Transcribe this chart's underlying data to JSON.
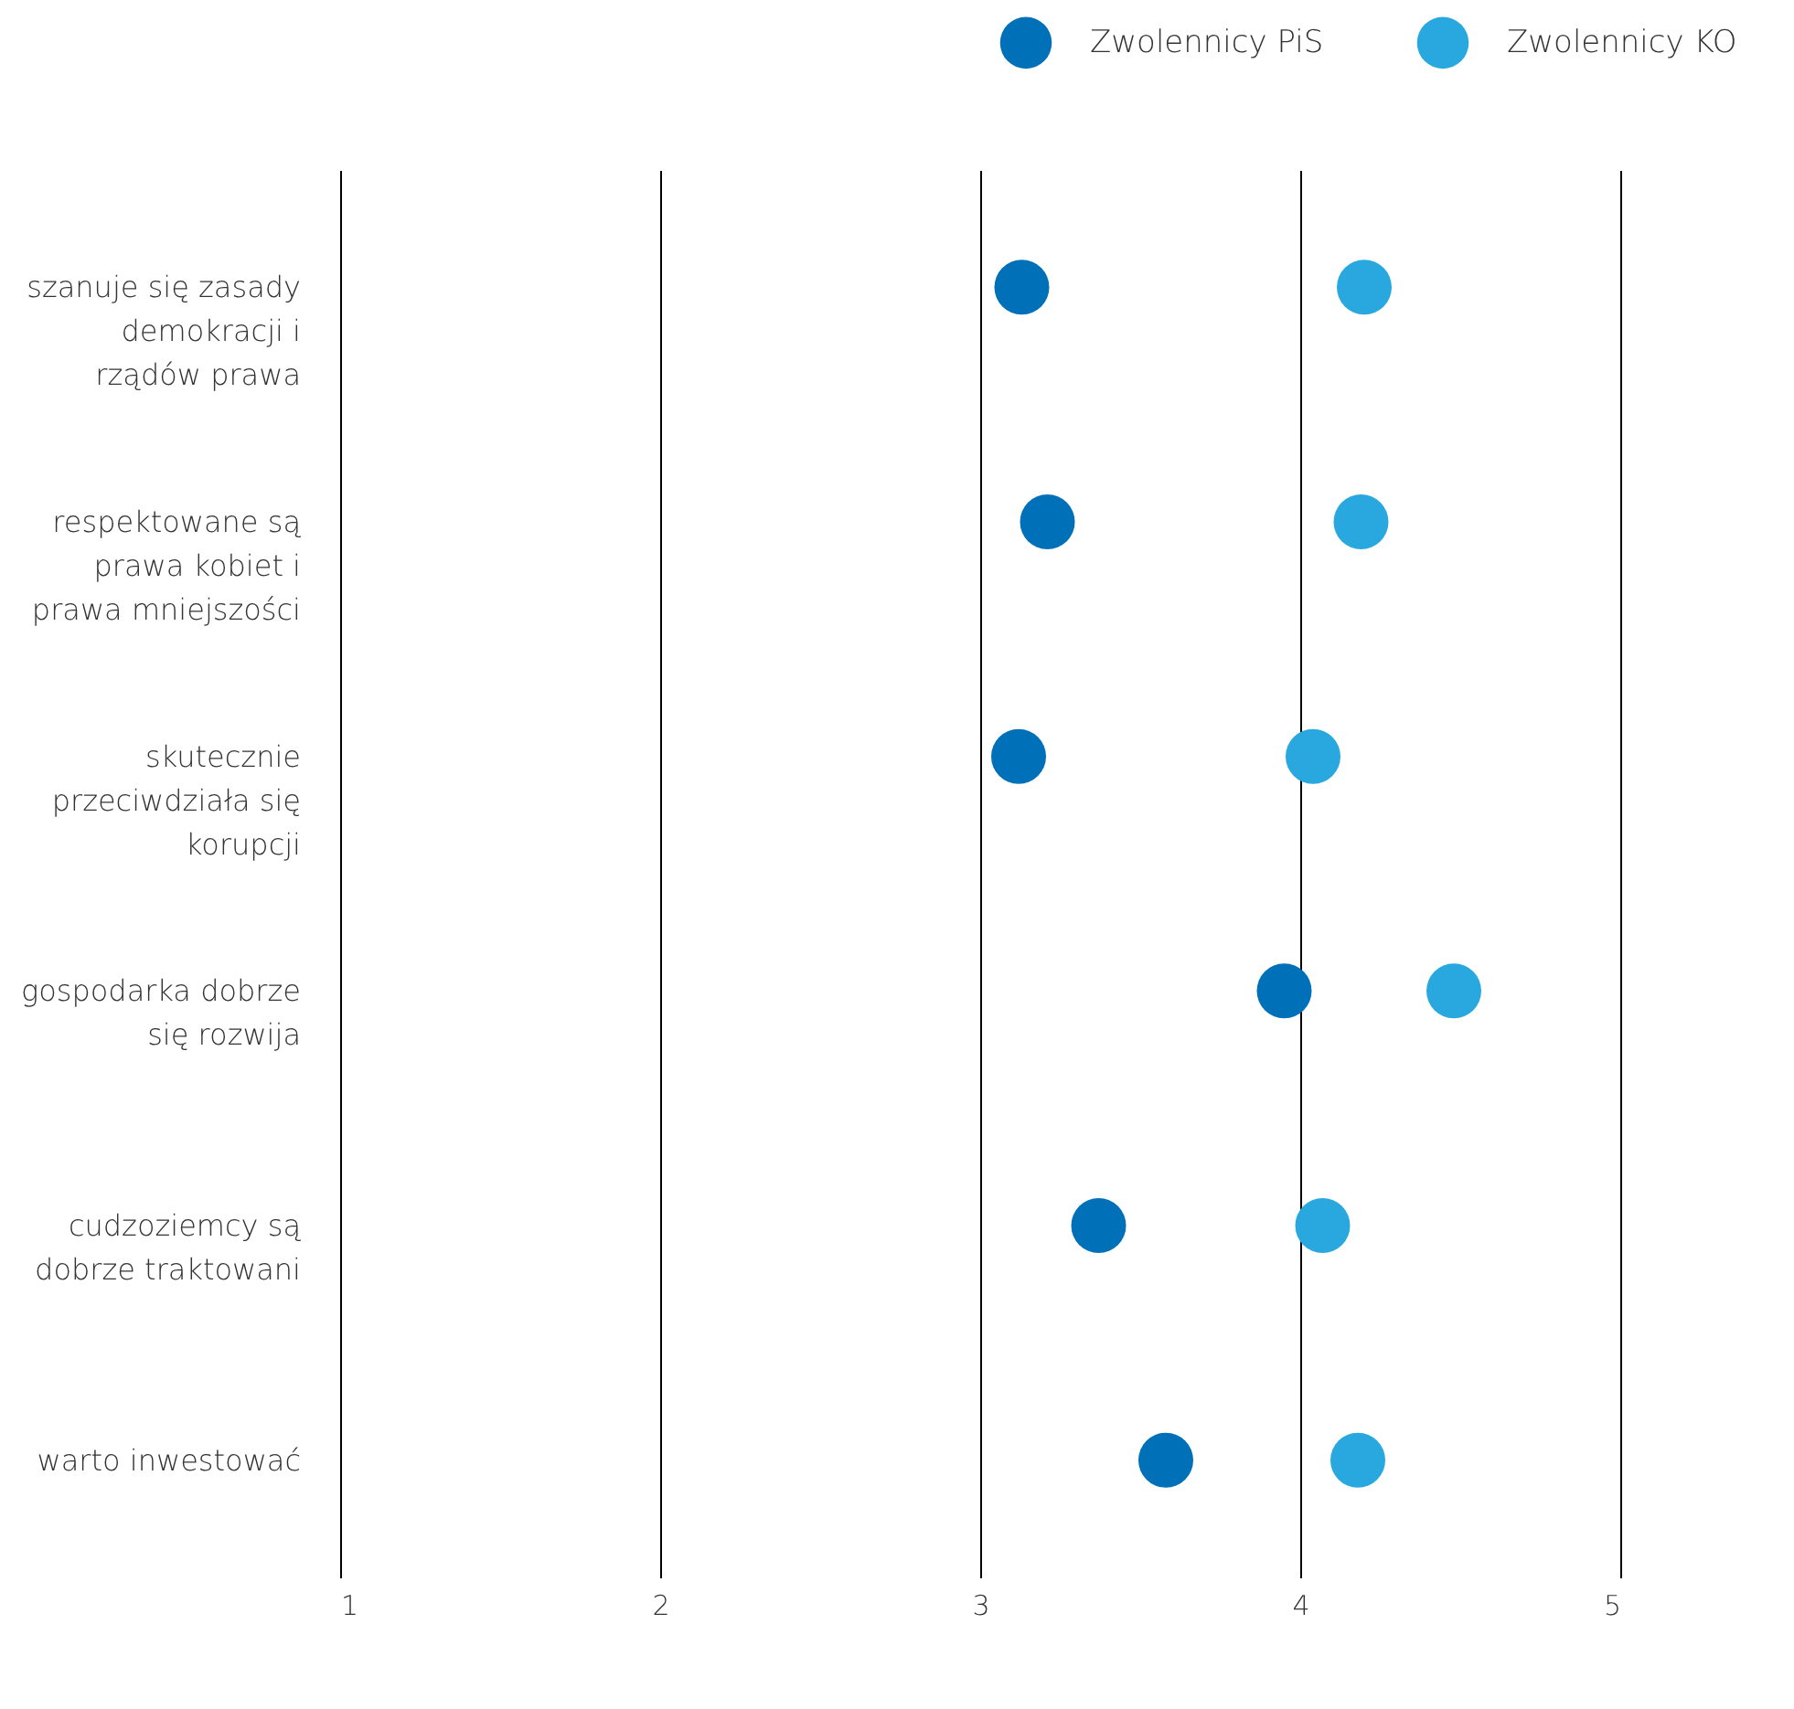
{
  "chart_data": {
    "type": "scatter",
    "categories": [
      "szanuje się zasady demokracji i rządów prawa",
      "respektowane są prawa kobiet i prawa mniejszości",
      "skutecznie przeciwdziała się korupcji",
      "gospodarka dobrze się rozwija",
      "cudzoziemcy są dobrze traktowani",
      "warto inwestować"
    ],
    "orientation": "horizontal",
    "series": [
      {
        "name": "Zwolennicy PiS",
        "color": "#0070b8",
        "values": [
          3.13,
          3.21,
          3.12,
          3.95,
          3.37,
          3.58
        ]
      },
      {
        "name": "Zwolennicy KO",
        "color": "#29a8e0",
        "values": [
          4.2,
          4.19,
          4.04,
          4.48,
          4.07,
          4.18
        ]
      }
    ],
    "xlim": [
      1,
      5
    ],
    "xticks": [
      1,
      2,
      3,
      4,
      5
    ],
    "grid": "x",
    "legend": "top right",
    "marker": "circle"
  }
}
